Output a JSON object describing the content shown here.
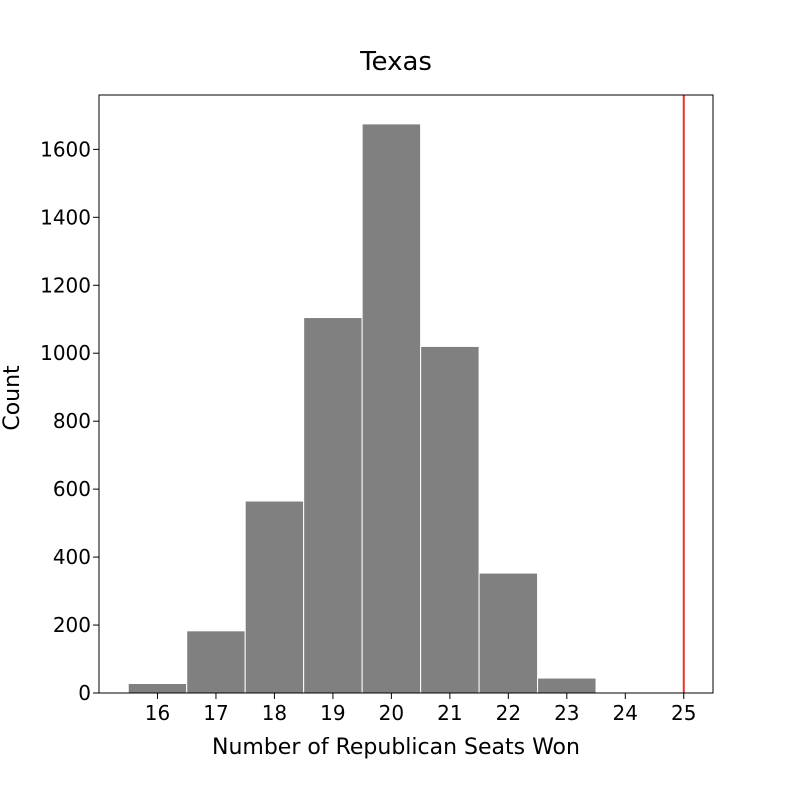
{
  "chart_data": {
    "type": "bar",
    "title": "Texas",
    "xlabel": "Number of Republican Seats Won",
    "ylabel": "Count",
    "x": [
      16,
      17,
      18,
      19,
      20,
      21,
      22,
      23
    ],
    "values": [
      28,
      183,
      565,
      1105,
      1675,
      1020,
      353,
      44
    ],
    "xlim": [
      15.0,
      25.5
    ],
    "ylim": [
      0,
      1760
    ],
    "xticks": [
      16,
      17,
      18,
      19,
      20,
      21,
      22,
      23,
      24,
      25
    ],
    "yticks": [
      0,
      200,
      400,
      600,
      800,
      1000,
      1200,
      1400,
      1600
    ],
    "reference_line_x": 25,
    "bar_color": "#808080",
    "bar_edge_color": "#ffffff",
    "reference_line_color": "#e8312f",
    "grid": false
  }
}
